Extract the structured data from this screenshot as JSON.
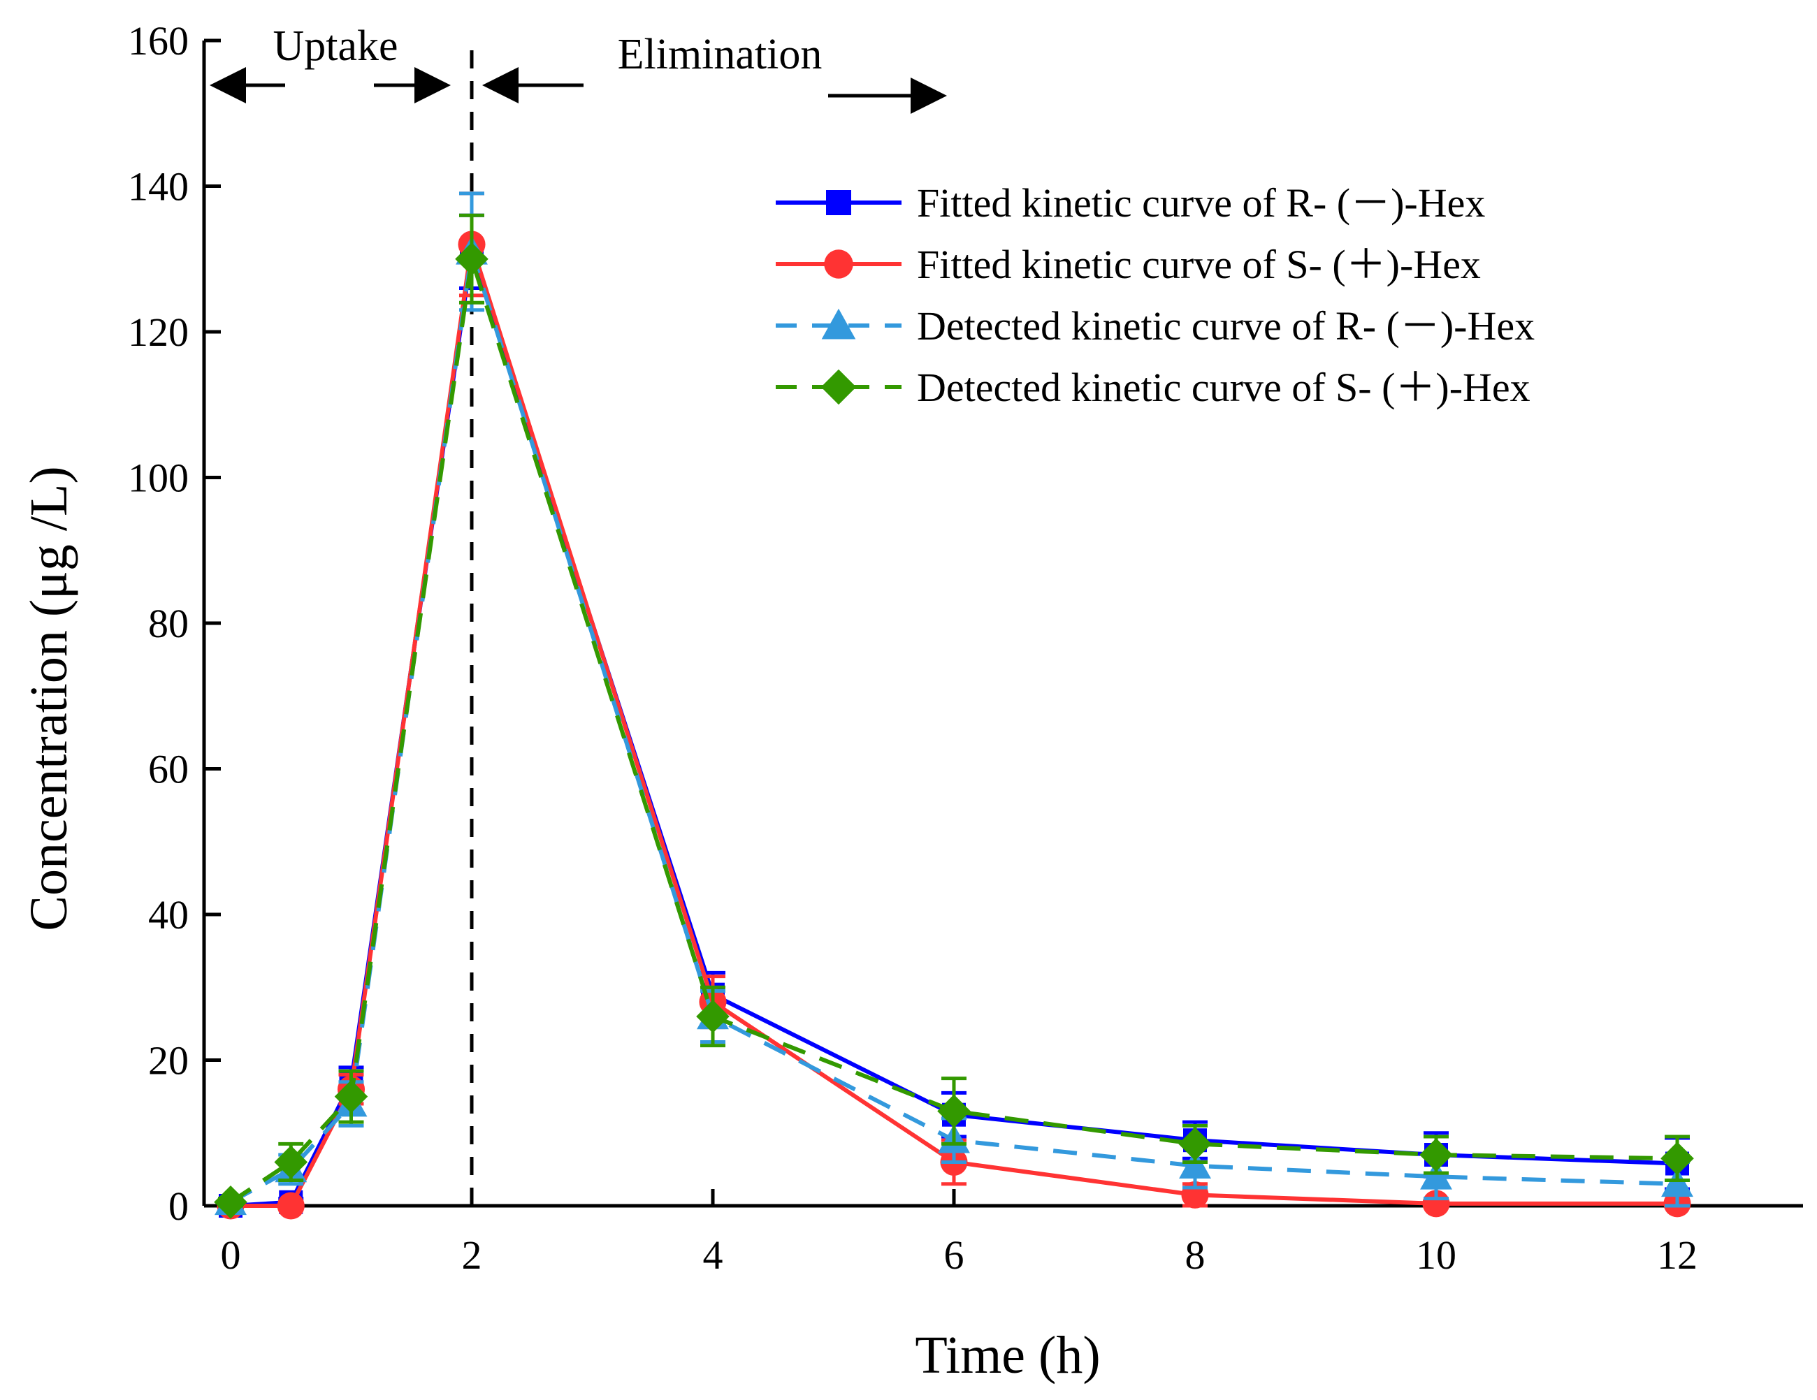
{
  "chart_data": {
    "type": "line",
    "title": "",
    "xlabel": "Time (h)",
    "ylabel": "Concentration  (μg /L)",
    "xlim": [
      -0.1,
      13.2
    ],
    "ylim": [
      0,
      160
    ],
    "xticks": [
      0,
      2,
      4,
      6,
      8,
      10,
      12
    ],
    "yticks": [
      0,
      20,
      40,
      60,
      80,
      100,
      120,
      140,
      160
    ],
    "grid": false,
    "legend_position": "top-right",
    "annotations": {
      "uptake_label": "Uptake",
      "elimination_label": "Elimination",
      "divider_x": 2
    },
    "x": [
      0,
      0.5,
      1,
      2,
      4,
      6,
      8,
      10,
      12
    ],
    "series": [
      {
        "name": "Fitted kinetic curve of R- (－)-Hex",
        "color": "#0000ff",
        "marker": "square",
        "dash": "solid",
        "values": [
          0,
          0.5,
          17,
          131,
          29,
          12.5,
          9,
          7,
          5.8
        ],
        "errors": [
          0,
          0.5,
          2,
          5,
          3,
          3,
          2.5,
          3,
          3.5
        ]
      },
      {
        "name": "Fitted kinetic curve of S- (＋)-Hex",
        "color": "#ff3333",
        "marker": "circle",
        "dash": "solid",
        "values": [
          0,
          0,
          16,
          132,
          28,
          6,
          1.5,
          0.3,
          0.3
        ],
        "errors": [
          0,
          0.5,
          2,
          7,
          3.5,
          3,
          1.5,
          0.5,
          0.5
        ]
      },
      {
        "name": "Detected kinetic curve of R- (－)-Hex",
        "color": "#3399dd",
        "marker": "triangle",
        "dash": "dashed",
        "values": [
          0.5,
          5,
          14,
          131,
          26,
          9,
          5.5,
          4,
          3
        ],
        "errors": [
          0.5,
          2,
          3,
          8,
          3.5,
          3,
          3,
          3,
          3
        ]
      },
      {
        "name": "Detected kinetic curve of S- (＋)-Hex",
        "color": "#339900",
        "marker": "diamond",
        "dash": "dashed",
        "values": [
          0.5,
          6,
          15,
          130,
          26,
          13,
          8.5,
          7,
          6.5
        ],
        "errors": [
          0.5,
          2.5,
          3.5,
          6,
          4,
          4.5,
          2.5,
          2.5,
          3
        ]
      }
    ]
  }
}
